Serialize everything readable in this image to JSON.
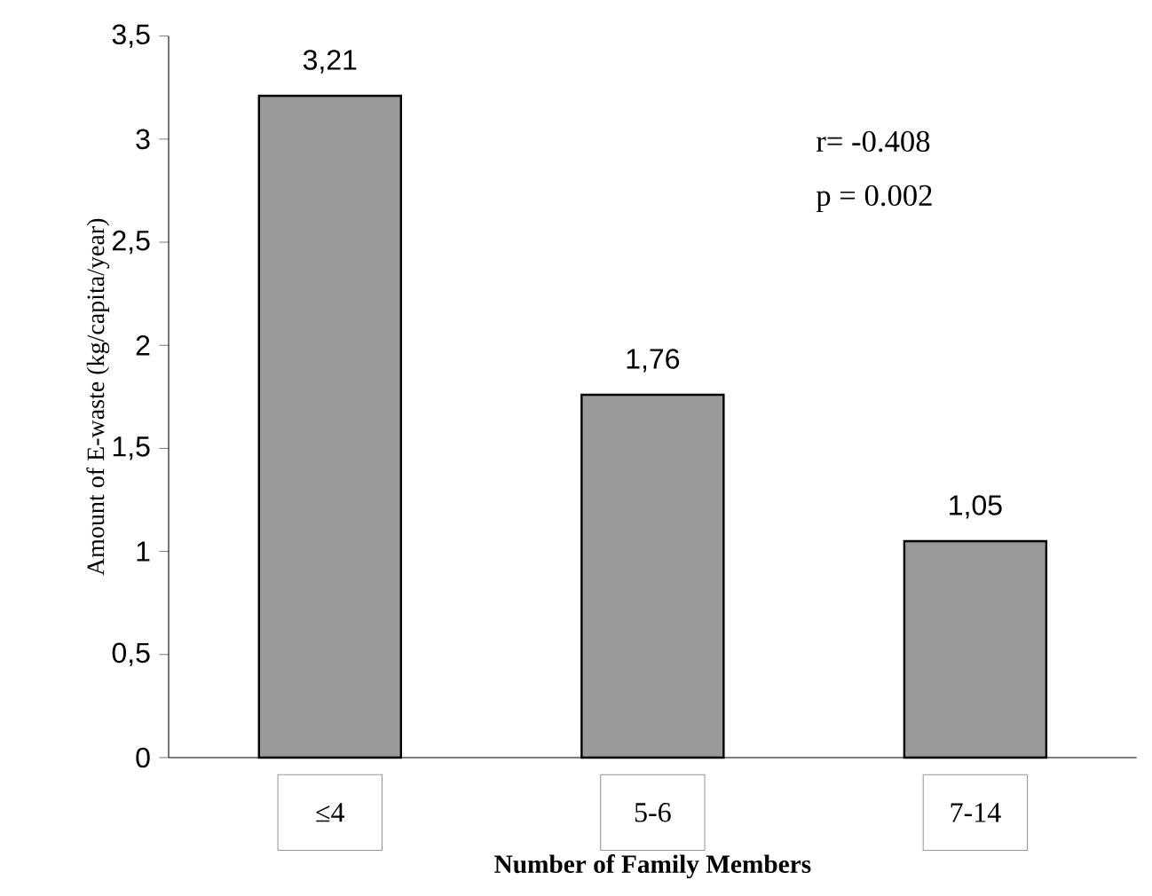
{
  "chart_data": {
    "type": "bar",
    "categories": [
      "≤4",
      "5-6",
      "7-14"
    ],
    "values": [
      3.21,
      1.76,
      1.05
    ],
    "value_labels": [
      "3,21",
      "1,76",
      "1,05"
    ],
    "color": "#9a9a9a",
    "xlabel": "Number of Family Members",
    "ylabel": "Amount of E-waste (kg/capita/year)",
    "ylim": [
      0,
      3.5
    ],
    "yticks": [
      0,
      {
        "value": 0.5,
        "label": "0,5"
      },
      1,
      {
        "value": 1.5,
        "label": "1,5"
      },
      2,
      {
        "value": 2.5,
        "label": "2,5"
      },
      3,
      {
        "value": 3.5,
        "label": "3,5"
      }
    ],
    "annotations": [
      "r= -0.408",
      "p = 0.002"
    ],
    "grid": false
  }
}
